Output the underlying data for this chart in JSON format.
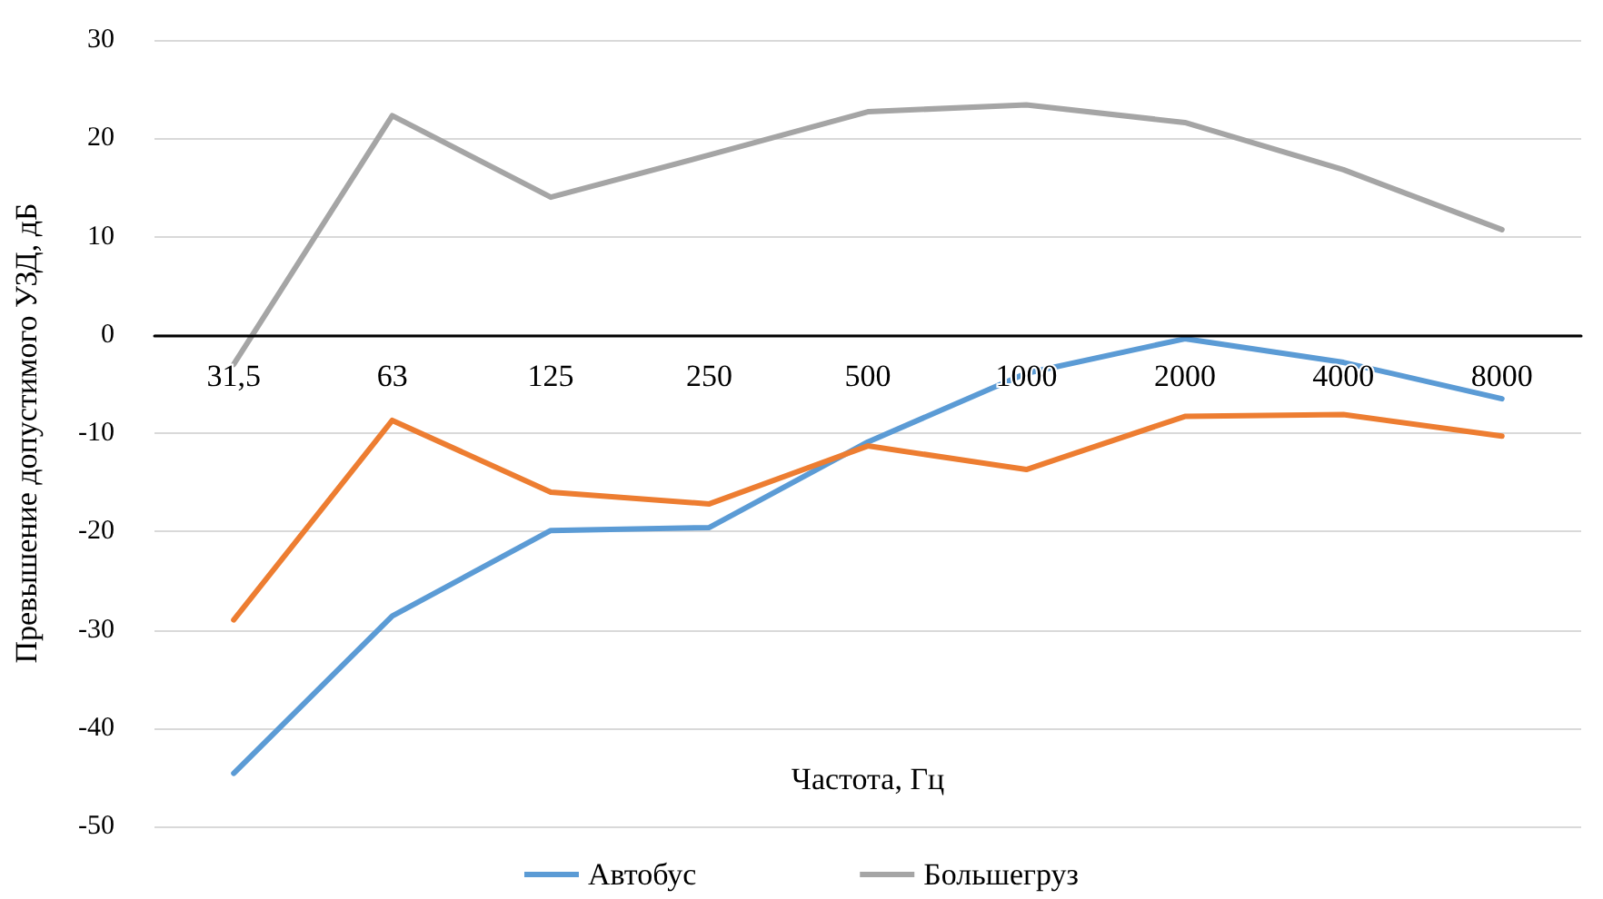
{
  "chart_data": {
    "type": "line",
    "xlabel": "Частота, Гц",
    "ylabel": "Превышение допустимого УЗД, дБ",
    "categories": [
      "31,5",
      "63",
      "125",
      "250",
      "500",
      "1000",
      "2000",
      "4000",
      "8000"
    ],
    "series": [
      {
        "name": "Автобус",
        "color": "#5b9bd5",
        "values": [
          -44.6,
          -28.6,
          -19.9,
          -19.6,
          -10.9,
          -3.9,
          -0.4,
          -2.8,
          -6.5
        ]
      },
      {
        "color": "#ed7d31",
        "values": [
          -29,
          -8.7,
          -16,
          -17.2,
          -11.3,
          -13.7,
          -8.3,
          -8.1,
          -10.3
        ]
      },
      {
        "name": "Большегруз",
        "color": "#a5a5a5",
        "values": [
          -3,
          22.3,
          14,
          18.3,
          22.7,
          23.4,
          21.6,
          16.8,
          10.7
        ]
      }
    ],
    "ylim": [
      -50,
      30
    ],
    "yticks": [
      -50,
      -40,
      -30,
      -20,
      -10,
      0,
      10,
      20,
      30
    ],
    "grid": "y",
    "legend": "bottom",
    "marker": "none",
    "line_style": "solid"
  }
}
